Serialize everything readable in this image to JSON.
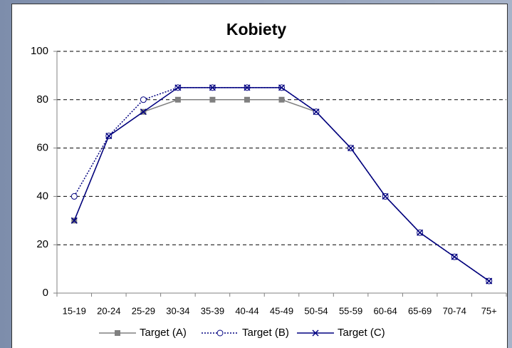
{
  "chart_data": {
    "type": "line",
    "title": "Kobiety",
    "categories": [
      "15-19",
      "20-24",
      "25-29",
      "30-34",
      "35-39",
      "40-44",
      "45-49",
      "50-54",
      "55-59",
      "60-64",
      "65-69",
      "70-74",
      "75+"
    ],
    "series": [
      {
        "name": "Target (A)",
        "color": "#808080",
        "marker": "square",
        "dash": "solid",
        "values": [
          30,
          65,
          75,
          80,
          80,
          80,
          80,
          75,
          60,
          40,
          25,
          15,
          5
        ]
      },
      {
        "name": "Target (B)",
        "color": "#000080",
        "marker": "circle",
        "dash": "dotted",
        "values": [
          40,
          65,
          80,
          85,
          85,
          85,
          85,
          75,
          60,
          40,
          25,
          15,
          5
        ]
      },
      {
        "name": "Target (C)",
        "color": "#000080",
        "marker": "x",
        "dash": "solid",
        "values": [
          30,
          65,
          75,
          85,
          85,
          85,
          85,
          75,
          60,
          40,
          25,
          15,
          5
        ]
      }
    ],
    "ylim": [
      0,
      100
    ],
    "yticks": [
      0,
      20,
      40,
      60,
      80,
      100
    ],
    "grid": true,
    "legend": "bottom"
  }
}
